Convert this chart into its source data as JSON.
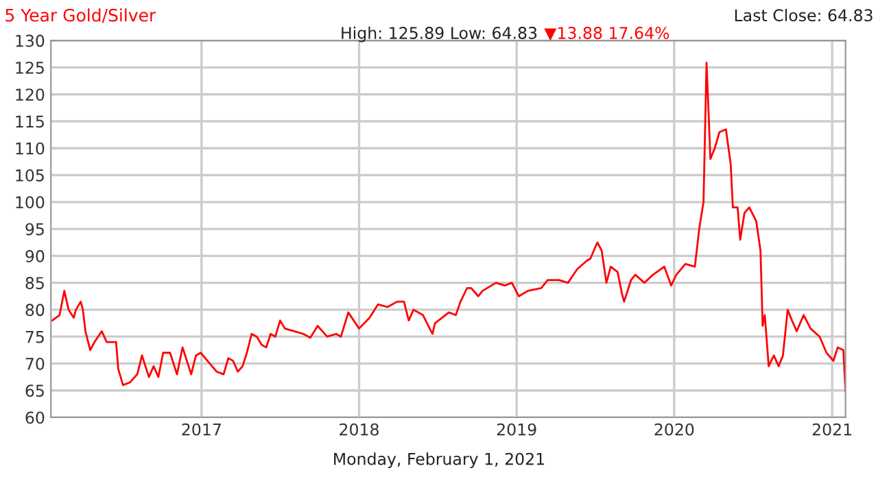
{
  "chart_data": {
    "type": "line",
    "title": "5 Year Gold/Silver",
    "subtitle": "High: 125.89 Low: 64.83",
    "xlabel": "Monday, February 1, 2021",
    "annotations": [
      "▼13.88 17.64%",
      "Last Close: 64.83"
    ],
    "xlim": [
      "2016-01-18",
      "2021-02-01"
    ],
    "xticks": [
      {
        "value": "2017-01-01",
        "label": "2017"
      },
      {
        "value": "2018-01-01",
        "label": "2018"
      },
      {
        "value": "2019-01-01",
        "label": "2019"
      },
      {
        "value": "2020-01-01",
        "label": "2020"
      },
      {
        "value": "2021-01-01",
        "label": "2021"
      }
    ],
    "ylim": [
      60,
      130
    ],
    "yticks": [
      60,
      65,
      70,
      75,
      80,
      85,
      90,
      95,
      100,
      105,
      110,
      115,
      120,
      125,
      130
    ],
    "grid": true,
    "legend": false,
    "marker": "none",
    "line_style": "solid",
    "series": [
      {
        "color": "#ff0000",
        "x": [
          "2016-01-21",
          "2016-02-07",
          "2016-02-18",
          "2016-02-28",
          "2016-03-11",
          "2016-03-16",
          "2016-03-27",
          "2016-04-01",
          "2016-04-07",
          "2016-04-18",
          "2016-04-28",
          "2016-05-15",
          "2016-05-26",
          "2016-06-17",
          "2016-06-22",
          "2016-07-03",
          "2016-07-19",
          "2016-08-05",
          "2016-08-16",
          "2016-09-01",
          "2016-09-12",
          "2016-09-23",
          "2016-10-04",
          "2016-10-20",
          "2016-11-05",
          "2016-11-18",
          "2016-12-08",
          "2016-12-19",
          "2016-12-30",
          "2017-01-20",
          "2017-02-05",
          "2017-02-21",
          "2017-03-04",
          "2017-03-15",
          "2017-03-26",
          "2017-04-06",
          "2017-04-16",
          "2017-04-27",
          "2017-05-09",
          "2017-05-20",
          "2017-05-31",
          "2017-06-10",
          "2017-06-21",
          "2017-07-02",
          "2017-07-13",
          "2017-08-04",
          "2017-08-25",
          "2017-09-10",
          "2017-09-27",
          "2017-10-19",
          "2017-11-09",
          "2017-11-20",
          "2017-12-07",
          "2018-01-01",
          "2018-01-25",
          "2018-02-14",
          "2018-03-08",
          "2018-03-30",
          "2018-04-15",
          "2018-04-26",
          "2018-05-07",
          "2018-05-29",
          "2018-06-20",
          "2018-06-26",
          "2018-07-28",
          "2018-08-13",
          "2018-08-24",
          "2018-09-08",
          "2018-09-18",
          "2018-10-04",
          "2018-10-14",
          "2018-11-14",
          "2018-12-05",
          "2018-12-21",
          "2019-01-06",
          "2019-01-27",
          "2019-02-27",
          "2019-03-14",
          "2019-04-09",
          "2019-04-30",
          "2019-05-21",
          "2019-06-11",
          "2019-06-21",
          "2019-07-07",
          "2019-07-17",
          "2019-07-28",
          "2019-08-07",
          "2019-08-23",
          "2019-09-02",
          "2019-09-07",
          "2019-09-23",
          "2019-10-03",
          "2019-10-24",
          "2019-11-13",
          "2019-12-09",
          "2019-12-25",
          "2020-01-06",
          "2020-01-27",
          "2020-02-18",
          "2020-02-28",
          "2020-03-09",
          "2020-03-16",
          "2020-03-25",
          "2020-04-04",
          "2020-04-15",
          "2020-04-30",
          "2020-05-11",
          "2020-05-16",
          "2020-05-27",
          "2020-06-02",
          "2020-06-12",
          "2020-06-23",
          "2020-07-09",
          "2020-07-19",
          "2020-07-24",
          "2020-07-29",
          "2020-08-07",
          "2020-08-19",
          "2020-08-30",
          "2020-09-09",
          "2020-09-20",
          "2020-09-30",
          "2020-10-11",
          "2020-10-27",
          "2020-11-12",
          "2020-12-03",
          "2020-12-19",
          "2021-01-04",
          "2021-01-14",
          "2021-01-27",
          "2021-02-01"
        ],
        "values": [
          78,
          79,
          83.5,
          80,
          78.5,
          80,
          81.5,
          80,
          76,
          72.5,
          74,
          76,
          74,
          74,
          69,
          66,
          66.5,
          68,
          71.5,
          67.5,
          69.5,
          67.5,
          72,
          72,
          68,
          73,
          68,
          71.5,
          72,
          70,
          68.5,
          68,
          71,
          70.5,
          68.5,
          69.5,
          72,
          75.5,
          75,
          73.5,
          73,
          75.5,
          75,
          78,
          76.5,
          76,
          75.5,
          74.8,
          77,
          75,
          75.5,
          75,
          79.5,
          76.5,
          78.5,
          81,
          80.5,
          81.5,
          81.5,
          78,
          80,
          79,
          75.5,
          77.5,
          79.5,
          79,
          81.5,
          84,
          84,
          82.5,
          83.5,
          85,
          84.5,
          85,
          82.5,
          83.5,
          84,
          85.5,
          85.5,
          85,
          87.5,
          89,
          89.5,
          92.5,
          91,
          85,
          88,
          87,
          83,
          81.5,
          85.5,
          86.5,
          85,
          86.5,
          88,
          84.5,
          86.5,
          88.5,
          88,
          95,
          100,
          125.89,
          108,
          110,
          113,
          113.5,
          107,
          99,
          99,
          93,
          98,
          99,
          96.5,
          91,
          77,
          79,
          69.5,
          71.5,
          69.5,
          71.5,
          80,
          78,
          76,
          79,
          76.5,
          75,
          72,
          70.5,
          73,
          72.5,
          64.83
        ]
      }
    ]
  }
}
